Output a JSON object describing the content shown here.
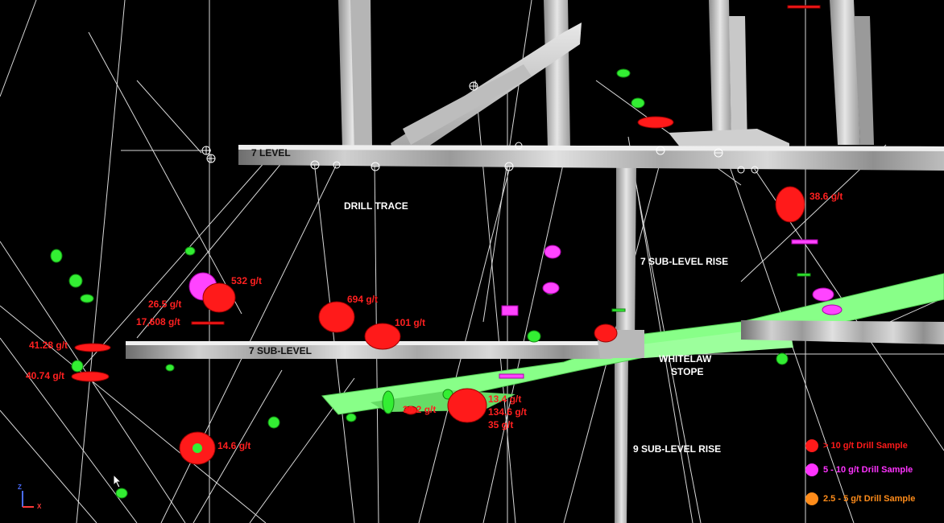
{
  "labels": {
    "level7": "7 LEVEL",
    "sublevel7": "7 SUB-LEVEL",
    "drill_trace": "DRILL TRACE",
    "sublevel_rise7": "7 SUB-LEVEL RISE",
    "sublevel_rise9": "9 SUB-LEVEL RISE",
    "whitelaw_stope_line1": "WHITELAW",
    "whitelaw_stope_line2": "STOPE"
  },
  "assays": [
    {
      "text": "532 g/t"
    },
    {
      "text": "26.5 g/t"
    },
    {
      "text": "17,608 g/t"
    },
    {
      "text": "694 g/t"
    },
    {
      "text": "101 g/t"
    },
    {
      "text": "41.28 g/t"
    },
    {
      "text": "40.74 g/t"
    },
    {
      "text": "14.6 g/t"
    },
    {
      "text": "30.2 g/t"
    },
    {
      "text": "13.4 g/t"
    },
    {
      "text": "134.6 g/t"
    },
    {
      "text": "35 g/t"
    },
    {
      "text": "38.6 g/t"
    }
  ],
  "legend": [
    {
      "text": "> 10 g/t Drill Sample",
      "color": "#ff1a1a"
    },
    {
      "text": "5 - 10 g/t Drill Sample",
      "color": "#ff33ff"
    },
    {
      "text": "2.5 - 5 g/t Drill Sample",
      "color": "#ff8c1a"
    }
  ],
  "axis": {
    "z": "Z",
    "x": "X"
  },
  "colors": {
    "high_grade": "#ff1a1a",
    "mid_grade": "#ff33ff",
    "low_grade": "#ff8c1a",
    "trace": "#33ff33",
    "stope": "#7dff7d",
    "workings": "#c8c8c8"
  }
}
